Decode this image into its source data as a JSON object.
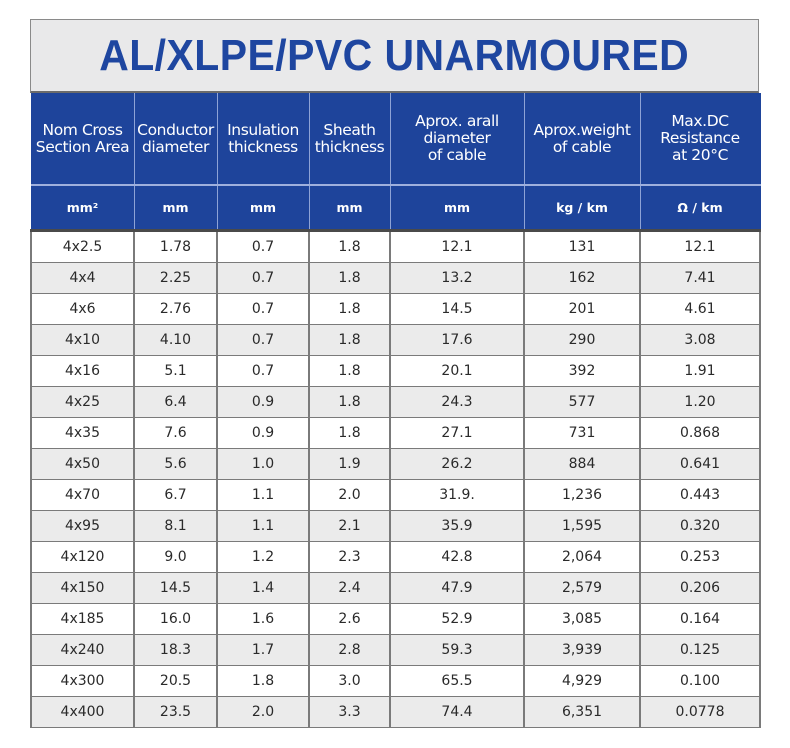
{
  "title": "AL/XLPE/PVC UNARMOURED",
  "colors": {
    "title_text": "#1e46a0",
    "title_bg": "#e9e9ea",
    "header_bg": "#1e449b",
    "header_text": "#ffffff",
    "row_odd": "#ffffff",
    "row_even": "#ebebeb",
    "grid": "#7a7a7a"
  },
  "table": {
    "headers": [
      {
        "label_line1": "Nom Cross",
        "label_line2": "Section Area",
        "label_line3": "",
        "unit": "mm²"
      },
      {
        "label_line1": "Conductor",
        "label_line2": "diameter",
        "label_line3": "",
        "unit": "mm"
      },
      {
        "label_line1": "Insulation",
        "label_line2": "thickness",
        "label_line3": "",
        "unit": "mm"
      },
      {
        "label_line1": "Sheath",
        "label_line2": "thickness",
        "label_line3": "",
        "unit": "mm"
      },
      {
        "label_line1": "Aprox. arall",
        "label_line2": "diameter",
        "label_line3": "of cable",
        "unit": "mm"
      },
      {
        "label_line1": "Aprox.weight",
        "label_line2": "of cable",
        "label_line3": "",
        "unit": "kg / km"
      },
      {
        "label_line1": "Max.DC",
        "label_line2": "Resistance",
        "label_line3": "at 20°C",
        "unit": "Ω / km"
      }
    ],
    "rows": [
      [
        "4x2.5",
        "1.78",
        "0.7",
        "1.8",
        "12.1",
        "131",
        "12.1"
      ],
      [
        "4x4",
        "2.25",
        "0.7",
        "1.8",
        "13.2",
        "162",
        "7.41"
      ],
      [
        "4x6",
        "2.76",
        "0.7",
        "1.8",
        "14.5",
        "201",
        "4.61"
      ],
      [
        "4x10",
        "4.10",
        "0.7",
        "1.8",
        "17.6",
        "290",
        "3.08"
      ],
      [
        "4x16",
        "5.1",
        "0.7",
        "1.8",
        "20.1",
        "392",
        "1.91"
      ],
      [
        "4x25",
        "6.4",
        "0.9",
        "1.8",
        "24.3",
        "577",
        "1.20"
      ],
      [
        "4x35",
        "7.6",
        "0.9",
        "1.8",
        "27.1",
        "731",
        "0.868"
      ],
      [
        "4x50",
        "5.6",
        "1.0",
        "1.9",
        "26.2",
        "884",
        "0.641"
      ],
      [
        "4x70",
        "6.7",
        "1.1",
        "2.0",
        "31.9.",
        "1,236",
        "0.443"
      ],
      [
        "4x95",
        "8.1",
        "1.1",
        "2.1",
        "35.9",
        "1,595",
        "0.320"
      ],
      [
        "4x120",
        "9.0",
        "1.2",
        "2.3",
        "42.8",
        "2,064",
        "0.253"
      ],
      [
        "4x150",
        "14.5",
        "1.4",
        "2.4",
        "47.9",
        "2,579",
        "0.206"
      ],
      [
        "4x185",
        "16.0",
        "1.6",
        "2.6",
        "52.9",
        "3,085",
        "0.164"
      ],
      [
        "4x240",
        "18.3",
        "1.7",
        "2.8",
        "59.3",
        "3,939",
        "0.125"
      ],
      [
        "4x300",
        "20.5",
        "1.8",
        "3.0",
        "65.5",
        "4,929",
        "0.100"
      ],
      [
        "4x400",
        "23.5",
        "2.0",
        "3.3",
        "74.4",
        "6,351",
        "0.0778"
      ]
    ]
  }
}
